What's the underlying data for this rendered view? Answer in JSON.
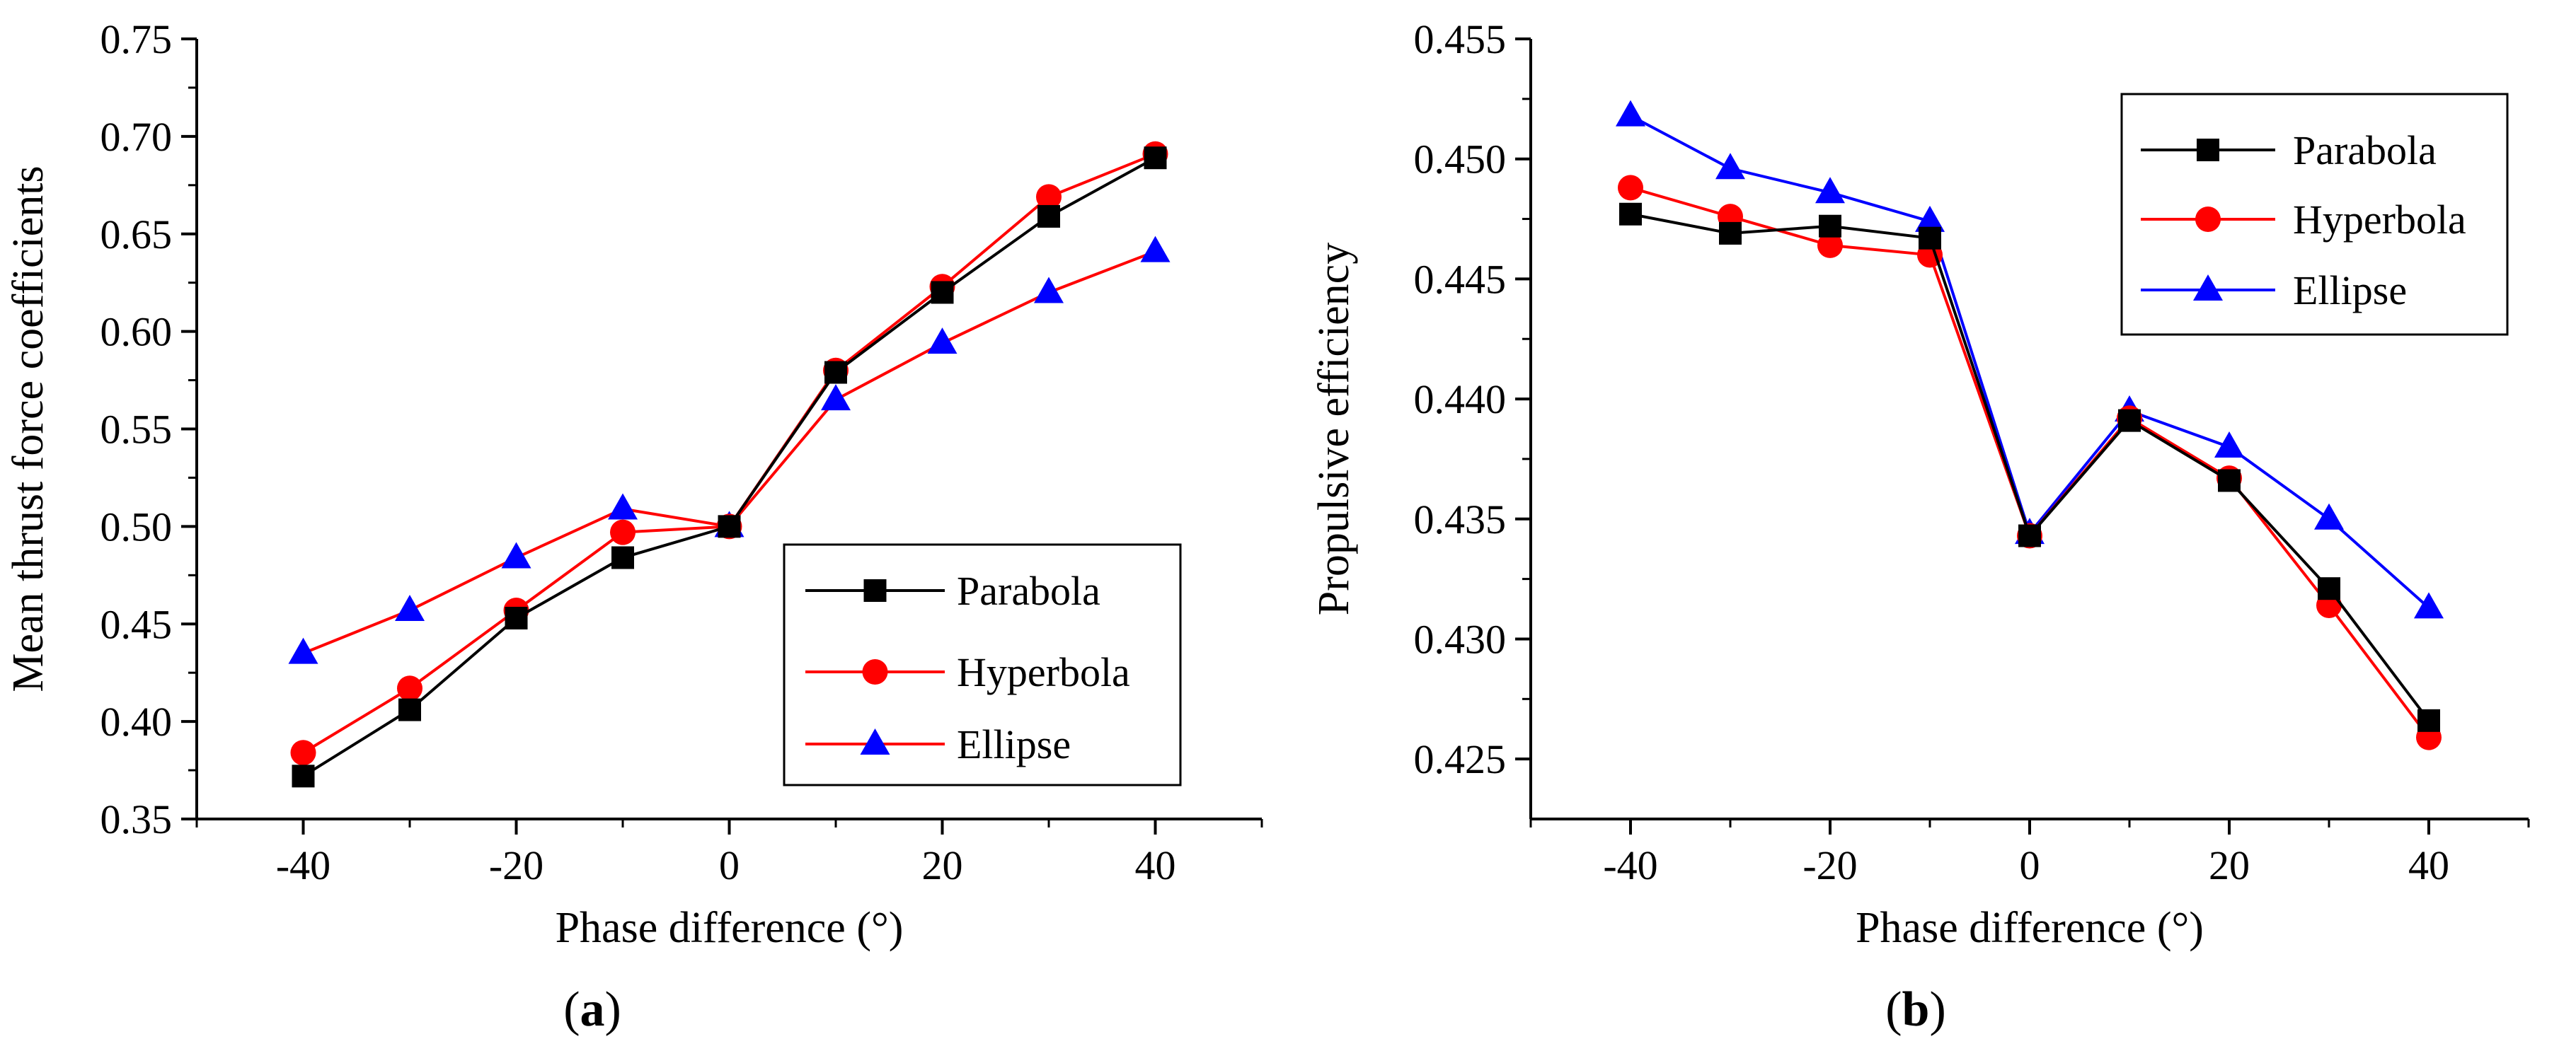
{
  "figure_labels": [
    "a",
    "b"
  ],
  "chart_data": [
    {
      "type": "line",
      "panel": "a",
      "xlabel": "Phase difference (°)",
      "ylabel": "Mean thrust force coefficients",
      "xlim": [
        -50,
        50
      ],
      "ylim": [
        0.35,
        0.75
      ],
      "xticks": [
        -40,
        -20,
        0,
        20,
        40
      ],
      "yticks": [
        0.35,
        0.4,
        0.45,
        0.5,
        0.55,
        0.6,
        0.65,
        0.7,
        0.75
      ],
      "ytick_decimals": 2,
      "legend_position": "bottom-right",
      "x": [
        -40,
        -30,
        -20,
        -10,
        0,
        10,
        20,
        30,
        40
      ],
      "series": [
        {
          "name": "Parabola",
          "color": "#000000",
          "marker": "square",
          "values": [
            0.372,
            0.406,
            0.453,
            0.484,
            0.5,
            0.579,
            0.62,
            0.659,
            0.689
          ]
        },
        {
          "name": "Hyperbola",
          "color": "#ff0000",
          "marker": "circle",
          "values": [
            0.384,
            0.417,
            0.457,
            0.497,
            0.5,
            0.58,
            0.623,
            0.669,
            0.691
          ]
        },
        {
          "name": "Ellipse",
          "color": "#ff0000",
          "marker": "triangle",
          "marker_color": "#0000ff",
          "values": [
            0.435,
            0.457,
            0.484,
            0.509,
            0.5,
            0.565,
            0.594,
            0.62,
            0.641
          ]
        }
      ]
    },
    {
      "type": "line",
      "panel": "b",
      "xlabel": "Phase difference (°)",
      "ylabel": "Propulsive efficiency",
      "xlim": [
        -50,
        50
      ],
      "ylim": [
        0.4225,
        0.455
      ],
      "xticks": [
        -40,
        -20,
        0,
        20,
        40
      ],
      "yticks": [
        0.425,
        0.43,
        0.435,
        0.44,
        0.445,
        0.45,
        0.455
      ],
      "ytick_decimals": 3,
      "legend_position": "top-right",
      "x": [
        -40,
        -30,
        -20,
        -10,
        0,
        10,
        20,
        30,
        40
      ],
      "series": [
        {
          "name": "Parabola",
          "color": "#000000",
          "marker": "square",
          "values": [
            0.4477,
            0.4469,
            0.4472,
            0.4467,
            0.4343,
            0.4391,
            0.4366,
            0.4321,
            0.4266
          ]
        },
        {
          "name": "Hyperbola",
          "color": "#ff0000",
          "marker": "circle",
          "values": [
            0.4488,
            0.4476,
            0.4464,
            0.446,
            0.4343,
            0.4392,
            0.4367,
            0.4314,
            0.4259
          ]
        },
        {
          "name": "Ellipse",
          "color": "#0000ff",
          "marker": "triangle",
          "values": [
            0.4518,
            0.4496,
            0.4486,
            0.4474,
            0.4344,
            0.4395,
            0.438,
            0.435,
            0.4313
          ]
        }
      ]
    }
  ]
}
